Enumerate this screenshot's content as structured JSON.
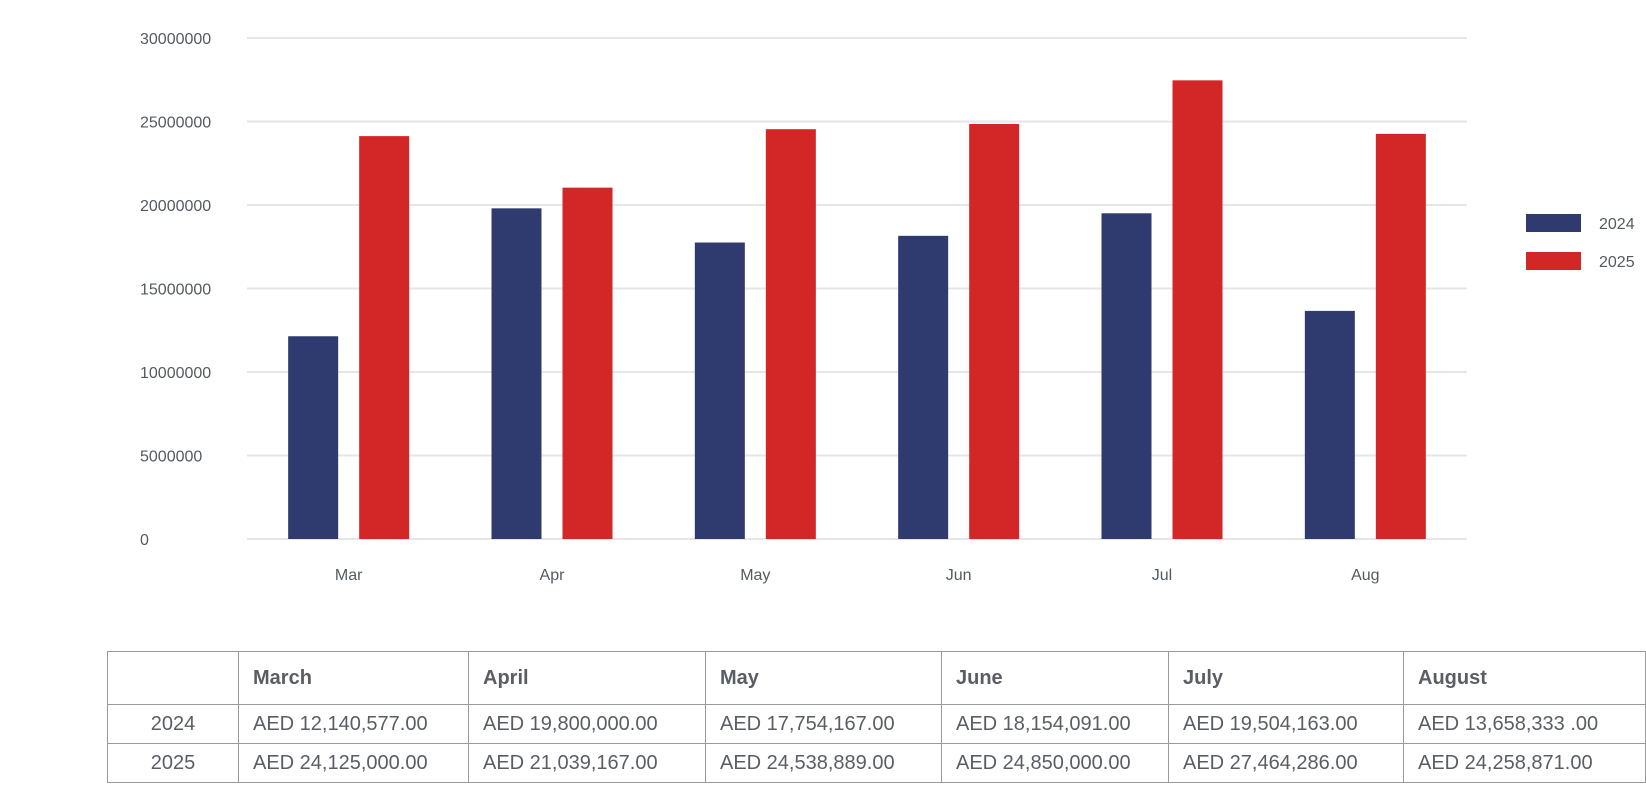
{
  "chart_data": {
    "type": "bar",
    "categories": [
      "Mar",
      "Apr",
      "May",
      "Jun",
      "Jul",
      "Aug"
    ],
    "series": [
      {
        "name": "2024",
        "color": "#2f3b6e",
        "values": [
          12140577,
          19800000,
          17754167,
          18154091,
          19504163,
          13658333
        ]
      },
      {
        "name": "2025",
        "color": "#d32627",
        "values": [
          24125000,
          21039167,
          24538889,
          24850000,
          27464286,
          24258871
        ]
      }
    ],
    "ylim": [
      0,
      30000000
    ],
    "yticks": [
      "0",
      "5000000",
      "10000000",
      "15000000",
      "20000000",
      "25000000",
      "30000000"
    ],
    "grid": true,
    "legend": "right",
    "title": "",
    "xlabel": "",
    "ylabel": ""
  },
  "table": {
    "header": [
      "",
      "March",
      "April",
      "May",
      "June",
      "July",
      "August"
    ],
    "rows": [
      {
        "label": "2024",
        "cells": [
          "AED 12,140,577.00",
          "AED 19,800,000.00",
          "AED 17,754,167.00",
          "AED 18,154,091.00",
          "AED 19,504,163.00",
          "AED 13,658,333 .00"
        ]
      },
      {
        "label": "2025",
        "cells": [
          "AED 24,125,000.00",
          "AED 21,039,167.00",
          "AED 24,538,889.00",
          "AED 24,850,000.00",
          "AED 27,464,286.00",
          "AED 24,258,871.00"
        ]
      }
    ]
  }
}
